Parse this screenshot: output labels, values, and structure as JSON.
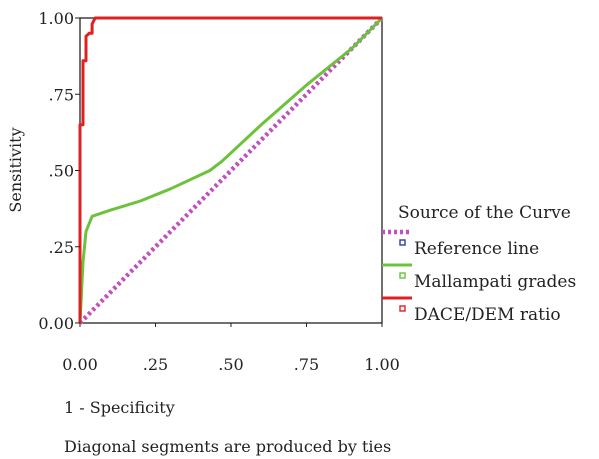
{
  "chart_data": {
    "type": "line",
    "title": "",
    "xlabel": "1 - Specificity",
    "ylabel": "Sensitivity",
    "xlim": [
      0,
      1
    ],
    "ylim": [
      0,
      1
    ],
    "x_ticks": [
      "0.00",
      ".25",
      ".50",
      ".75",
      "1.00"
    ],
    "y_ticks": [
      "0.00",
      ".25",
      ".50",
      ".75",
      "1.00"
    ],
    "grid": false,
    "legend_position": "right",
    "legend_title": "Source of the Curve",
    "footnote": "Diagonal segments are produced by ties",
    "series": [
      {
        "name": "Reference line",
        "color": "#c050c0",
        "style": "dotted",
        "points": [
          [
            0,
            0
          ],
          [
            1,
            1
          ]
        ]
      },
      {
        "name": "Mallampati grades",
        "color": "#6cc23a",
        "style": "solid",
        "points": [
          [
            0,
            0
          ],
          [
            0.01,
            0.2
          ],
          [
            0.02,
            0.3
          ],
          [
            0.04,
            0.35
          ],
          [
            0.1,
            0.37
          ],
          [
            0.2,
            0.4
          ],
          [
            0.3,
            0.44
          ],
          [
            0.43,
            0.5
          ],
          [
            0.47,
            0.53
          ],
          [
            0.6,
            0.65
          ],
          [
            0.75,
            0.78
          ],
          [
            0.9,
            0.9
          ],
          [
            1,
            1
          ]
        ]
      },
      {
        "name": "DACE/DEM ratio",
        "color": "#e02020",
        "style": "solid",
        "points": [
          [
            0,
            0
          ],
          [
            0,
            0.65
          ],
          [
            0.01,
            0.65
          ],
          [
            0.01,
            0.86
          ],
          [
            0.02,
            0.86
          ],
          [
            0.02,
            0.94
          ],
          [
            0.03,
            0.95
          ],
          [
            0.04,
            0.95
          ],
          [
            0.04,
            0.98
          ],
          [
            0.05,
            1
          ],
          [
            1,
            1
          ]
        ]
      }
    ]
  }
}
